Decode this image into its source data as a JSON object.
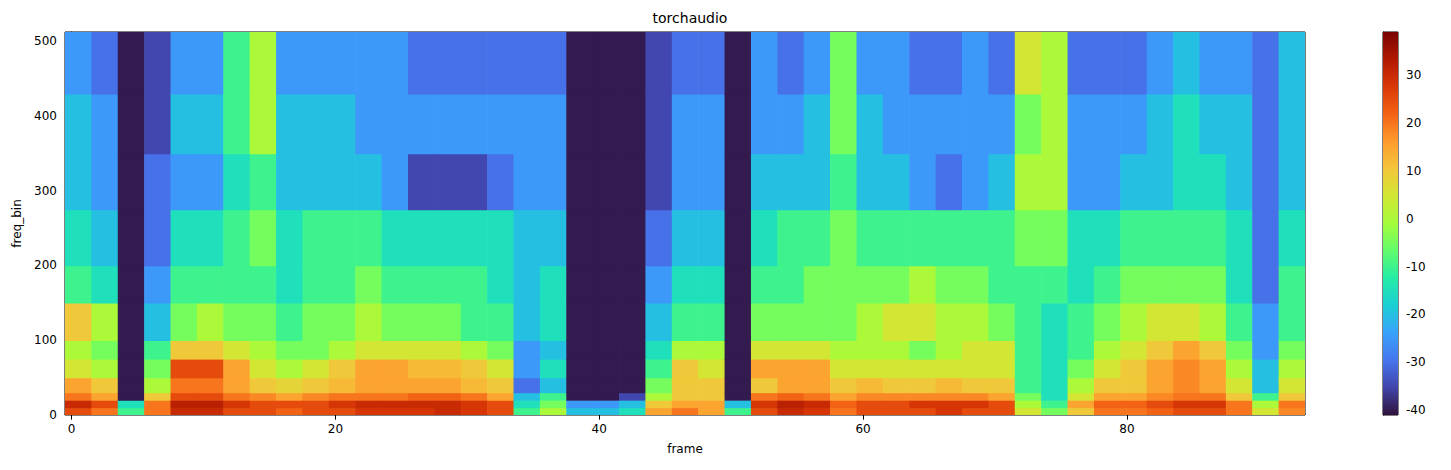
{
  "chart_data": {
    "type": "heatmap",
    "title": "torchaudio",
    "x_label": "frame",
    "y_label": "freq_bin",
    "xlim": [
      -0.5,
      93.5
    ],
    "xticks": [
      0,
      20,
      40,
      60,
      80
    ],
    "ylim": [
      -0.5,
      512.5
    ],
    "yticks": [
      0,
      100,
      200,
      300,
      400,
      500
    ],
    "grid": false,
    "frame_edges": [
      -0.5,
      1.5,
      3.5,
      5.5,
      7.5,
      9.5,
      11.5,
      13.5,
      15.5,
      17.5,
      19.5,
      21.5,
      23.5,
      25.5,
      27.5,
      29.5,
      31.5,
      33.5,
      35.5,
      37.5,
      39.5,
      41.5,
      43.5,
      45.5,
      47.5,
      49.5,
      51.5,
      53.5,
      55.5,
      57.5,
      59.5,
      61.5,
      63.5,
      65.5,
      67.5,
      69.5,
      71.5,
      73.5,
      75.5,
      77.5,
      79.5,
      81.5,
      83.5,
      85.5,
      87.5,
      89.5,
      91.5,
      93.5
    ],
    "freq_edges": [
      -0.5,
      9.5,
      19.5,
      29.5,
      49.5,
      74.5,
      99.5,
      149.5,
      199.5,
      274.5,
      349.5,
      429.5,
      512.5
    ],
    "cells": [
      [
        25,
        30,
        20,
        15,
        5,
        0,
        10,
        -10,
        -15,
        -20,
        -20,
        -25
      ],
      [
        20,
        25,
        15,
        10,
        0,
        -5,
        0,
        -15,
        -20,
        -25,
        -25,
        -30
      ],
      [
        -10,
        -15,
        -40,
        -40,
        -40,
        -40,
        -40,
        -40,
        -40,
        -40,
        -40,
        -40
      ],
      [
        20,
        20,
        10,
        0,
        -5,
        -10,
        -20,
        -25,
        -30,
        -30,
        -35,
        -35
      ],
      [
        30,
        32,
        25,
        20,
        25,
        10,
        -5,
        -10,
        -15,
        -25,
        -20,
        -25
      ],
      [
        30,
        32,
        25,
        20,
        25,
        10,
        0,
        -10,
        -15,
        -25,
        -20,
        -25
      ],
      [
        25,
        28,
        20,
        15,
        15,
        5,
        -5,
        -10,
        -10,
        -15,
        -10,
        -10
      ],
      [
        25,
        25,
        18,
        10,
        5,
        0,
        -5,
        -10,
        -5,
        -10,
        0,
        0
      ],
      [
        22,
        25,
        15,
        8,
        0,
        -5,
        -10,
        -15,
        -15,
        -20,
        -20,
        -25
      ],
      [
        25,
        25,
        18,
        10,
        5,
        -5,
        -5,
        -10,
        -10,
        -20,
        -20,
        -25
      ],
      [
        25,
        28,
        20,
        12,
        10,
        0,
        -5,
        -10,
        -10,
        -20,
        -20,
        -25
      ],
      [
        28,
        30,
        20,
        15,
        15,
        5,
        0,
        -5,
        -10,
        -20,
        -25,
        -25
      ],
      [
        28,
        30,
        20,
        15,
        15,
        5,
        -5,
        -10,
        -15,
        -25,
        -25,
        -25
      ],
      [
        28,
        30,
        22,
        15,
        12,
        5,
        -5,
        -10,
        -15,
        -35,
        -25,
        -30
      ],
      [
        30,
        30,
        22,
        15,
        12,
        5,
        -5,
        -10,
        -15,
        -35,
        -25,
        -30
      ],
      [
        28,
        28,
        20,
        12,
        10,
        0,
        -10,
        -10,
        -15,
        -35,
        -25,
        -30
      ],
      [
        25,
        25,
        15,
        10,
        5,
        -5,
        -10,
        -15,
        -15,
        -30,
        -25,
        -30
      ],
      [
        -10,
        -15,
        -20,
        -30,
        -25,
        -25,
        -20,
        -20,
        -20,
        -25,
        -25,
        -30
      ],
      [
        0,
        -5,
        -10,
        -20,
        -15,
        -20,
        -15,
        -15,
        -20,
        -25,
        -25,
        -30
      ],
      [
        -20,
        -25,
        -40,
        -40,
        -40,
        -40,
        -40,
        -40,
        -40,
        -40,
        -40,
        -40
      ],
      [
        -20,
        -25,
        -40,
        -40,
        -40,
        -40,
        -40,
        -40,
        -40,
        -40,
        -40,
        -40
      ],
      [
        -15,
        -20,
        -35,
        -40,
        -40,
        -40,
        -40,
        -40,
        -40,
        -40,
        -40,
        -40
      ],
      [
        15,
        10,
        0,
        -5,
        -10,
        -15,
        -20,
        -25,
        -30,
        -35,
        -35,
        -35
      ],
      [
        20,
        15,
        10,
        10,
        10,
        0,
        -10,
        -15,
        -20,
        -25,
        -25,
        -30
      ],
      [
        15,
        15,
        10,
        10,
        5,
        0,
        -10,
        -15,
        -20,
        -25,
        -25,
        -30
      ],
      [
        -10,
        -20,
        -40,
        -40,
        -40,
        -40,
        -40,
        -40,
        -40,
        -40,
        -40,
        -40
      ],
      [
        25,
        28,
        20,
        10,
        15,
        5,
        -5,
        -10,
        -15,
        -20,
        -25,
        -25
      ],
      [
        30,
        32,
        22,
        15,
        15,
        5,
        -5,
        -10,
        -10,
        -20,
        -25,
        -30
      ],
      [
        28,
        30,
        20,
        15,
        15,
        5,
        -5,
        -5,
        -10,
        -20,
        -20,
        -25
      ],
      [
        20,
        22,
        15,
        10,
        5,
        0,
        -5,
        -5,
        -5,
        -10,
        -5,
        -5
      ],
      [
        25,
        25,
        18,
        12,
        5,
        0,
        0,
        -5,
        -10,
        -20,
        -20,
        -25
      ],
      [
        25,
        25,
        18,
        10,
        5,
        0,
        5,
        -5,
        -10,
        -20,
        -25,
        -25
      ],
      [
        25,
        28,
        18,
        10,
        5,
        -5,
        5,
        0,
        -10,
        -25,
        -25,
        -30
      ],
      [
        28,
        28,
        18,
        12,
        5,
        0,
        0,
        -5,
        -10,
        -30,
        -25,
        -30
      ],
      [
        25,
        28,
        18,
        10,
        5,
        5,
        0,
        -5,
        -10,
        -25,
        -25,
        -25
      ],
      [
        25,
        25,
        15,
        10,
        5,
        5,
        -5,
        -10,
        -10,
        -20,
        -25,
        -30
      ],
      [
        5,
        0,
        -5,
        -10,
        -10,
        -10,
        -10,
        -10,
        -5,
        0,
        -5,
        5
      ],
      [
        -5,
        -10,
        -15,
        -15,
        -15,
        -15,
        -15,
        -10,
        -5,
        0,
        0,
        0
      ],
      [
        10,
        15,
        5,
        0,
        -5,
        -10,
        -10,
        -15,
        -15,
        -25,
        -25,
        -30
      ],
      [
        20,
        22,
        15,
        10,
        5,
        0,
        -5,
        -10,
        -15,
        -25,
        -25,
        -30
      ],
      [
        20,
        22,
        15,
        10,
        10,
        5,
        0,
        -5,
        -10,
        -20,
        -25,
        -30
      ],
      [
        22,
        25,
        18,
        15,
        15,
        10,
        5,
        -5,
        -10,
        -20,
        -20,
        -25
      ],
      [
        25,
        28,
        20,
        18,
        18,
        15,
        5,
        -5,
        -10,
        -15,
        -15,
        -20
      ],
      [
        25,
        28,
        20,
        15,
        15,
        10,
        0,
        -5,
        -10,
        -15,
        -20,
        -25
      ],
      [
        20,
        20,
        10,
        5,
        0,
        -5,
        -10,
        -15,
        -15,
        -20,
        -20,
        -25
      ],
      [
        5,
        0,
        -10,
        -20,
        -20,
        -25,
        -25,
        -30,
        -30,
        -30,
        -30,
        -30
      ],
      [
        18,
        20,
        10,
        5,
        0,
        -5,
        -10,
        -10,
        -15,
        -20,
        -20,
        -20
      ]
    ],
    "colorbar": {
      "range": [
        -41,
        39
      ],
      "ticks": [
        -40,
        -30,
        -20,
        -10,
        0,
        10,
        20,
        30
      ]
    }
  }
}
